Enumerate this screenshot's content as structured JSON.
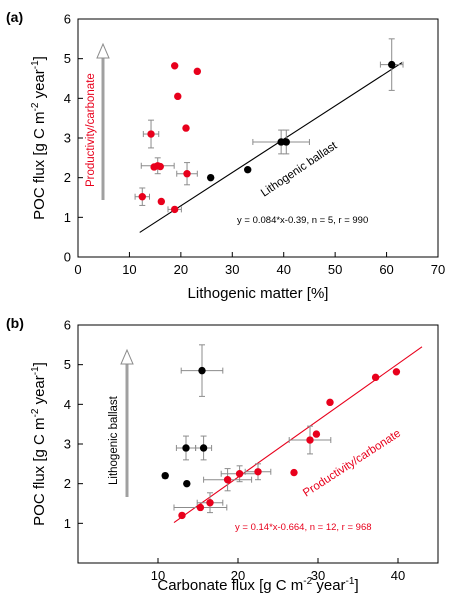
{
  "colors": {
    "red": "#e8001c",
    "black": "#000000",
    "errorbar": "#8c8c8c",
    "arrow": "#a0a0a0"
  },
  "chart_data": [
    {
      "panel_label": "(a)",
      "type": "scatter",
      "xlabel": "Lithogenic matter  [%]",
      "ylabel_main": "POC flux [g C m",
      "ylabel_sup1": "-2",
      "ylabel_mid": " year",
      "ylabel_sup2": "-1",
      "ylabel_end": "]",
      "xlim": [
        0,
        70
      ],
      "ylim": [
        0,
        6
      ],
      "xticks": [
        0,
        10,
        20,
        30,
        40,
        50,
        60,
        70
      ],
      "yticks": [
        0,
        1,
        2,
        3,
        4,
        5,
        6
      ],
      "series": [
        {
          "color": "red",
          "points": [
            {
              "x": 18.8,
              "y": 4.82
            },
            {
              "x": 23.2,
              "y": 4.68
            },
            {
              "x": 19.4,
              "y": 4.05
            },
            {
              "x": 21.0,
              "y": 3.25
            },
            {
              "x": 14.2,
              "y": 3.1,
              "xerr": 1.5,
              "yerr": 0.35
            },
            {
              "x": 15.5,
              "y": 2.3,
              "xerr": 3.2,
              "yerr": 0.2
            },
            {
              "x": 14.8,
              "y": 2.27
            },
            {
              "x": 16.0,
              "y": 2.28
            },
            {
              "x": 21.2,
              "y": 2.1,
              "xerr": 2.0,
              "yerr": 0.28
            },
            {
              "x": 12.5,
              "y": 1.52,
              "xerr": 1.4,
              "yerr": 0.22
            },
            {
              "x": 16.2,
              "y": 1.4
            },
            {
              "x": 18.8,
              "y": 1.2,
              "xerr": 1.3
            }
          ]
        },
        {
          "color": "black",
          "points": [
            {
              "x": 25.8,
              "y": 2.0
            },
            {
              "x": 33.0,
              "y": 2.2
            },
            {
              "x": 39.5,
              "y": 2.9,
              "xerr": 5.5,
              "yerr": 0.3
            },
            {
              "x": 40.5,
              "y": 2.9,
              "yerr": 0.3
            },
            {
              "x": 61.0,
              "y": 4.85,
              "xerr": 2.2,
              "yerr": 0.65
            }
          ]
        }
      ],
      "fit_line": {
        "color": "black",
        "x": [
          12,
          63
        ],
        "y": [
          0.62,
          4.9
        ]
      },
      "equation": "y = 0.084*x-0.39, n = 5, r = 990",
      "line_label": "Lithogenic ballast",
      "arrow_label": "Productivity/carbonate"
    },
    {
      "panel_label": "(b)",
      "type": "scatter",
      "xlabel_main": "Carbonate  flux [g C m",
      "xlabel_sup1": "-2",
      "xlabel_mid": " year",
      "xlabel_sup2": "-1",
      "xlabel_end": "]",
      "ylabel_main": "POC flux [g C m",
      "ylabel_sup1": "-2",
      "ylabel_mid": " year",
      "ylabel_sup2": "-1",
      "ylabel_end": "]",
      "xlim": [
        0,
        45
      ],
      "ylim": [
        0,
        6
      ],
      "xticks": [
        10,
        20,
        30,
        40
      ],
      "yticks": [
        1,
        2,
        3,
        4,
        5,
        6
      ],
      "series": [
        {
          "color": "red",
          "points": [
            {
              "x": 13.0,
              "y": 1.2
            },
            {
              "x": 15.3,
              "y": 1.4,
              "xerr": 3.3
            },
            {
              "x": 16.5,
              "y": 1.52,
              "xerr": 1.6,
              "yerr": 0.25
            },
            {
              "x": 18.7,
              "y": 2.1,
              "xerr": 3.0,
              "yerr": 0.28
            },
            {
              "x": 20.2,
              "y": 2.25,
              "xerr": 2.3,
              "yerr": 0.2
            },
            {
              "x": 22.5,
              "y": 2.3,
              "xerr": 1.6,
              "yerr": 0.2
            },
            {
              "x": 27.0,
              "y": 2.28
            },
            {
              "x": 29.0,
              "y": 3.1,
              "xerr": 2.6,
              "yerr": 0.35
            },
            {
              "x": 29.8,
              "y": 3.25
            },
            {
              "x": 31.5,
              "y": 4.05
            },
            {
              "x": 37.2,
              "y": 4.68
            },
            {
              "x": 39.8,
              "y": 4.82
            }
          ]
        },
        {
          "color": "black",
          "points": [
            {
              "x": 10.9,
              "y": 2.2,
              "xerr": 0.3
            },
            {
              "x": 13.6,
              "y": 2.0
            },
            {
              "x": 13.5,
              "y": 2.9,
              "xerr": 1.2,
              "yerr": 0.3
            },
            {
              "x": 15.7,
              "y": 2.9,
              "xerr": 1.0,
              "yerr": 0.3
            },
            {
              "x": 15.5,
              "y": 4.85,
              "xerr": 2.6,
              "yerr": 0.65
            }
          ]
        }
      ],
      "fit_line": {
        "color": "red",
        "x": [
          12,
          43
        ],
        "y": [
          1.02,
          5.45
        ]
      },
      "equation": "y = 0.14*x-0.664, n = 12, r = 968",
      "line_label": "Productivity/carbonate",
      "arrow_label": "Lithogenic ballast"
    }
  ]
}
